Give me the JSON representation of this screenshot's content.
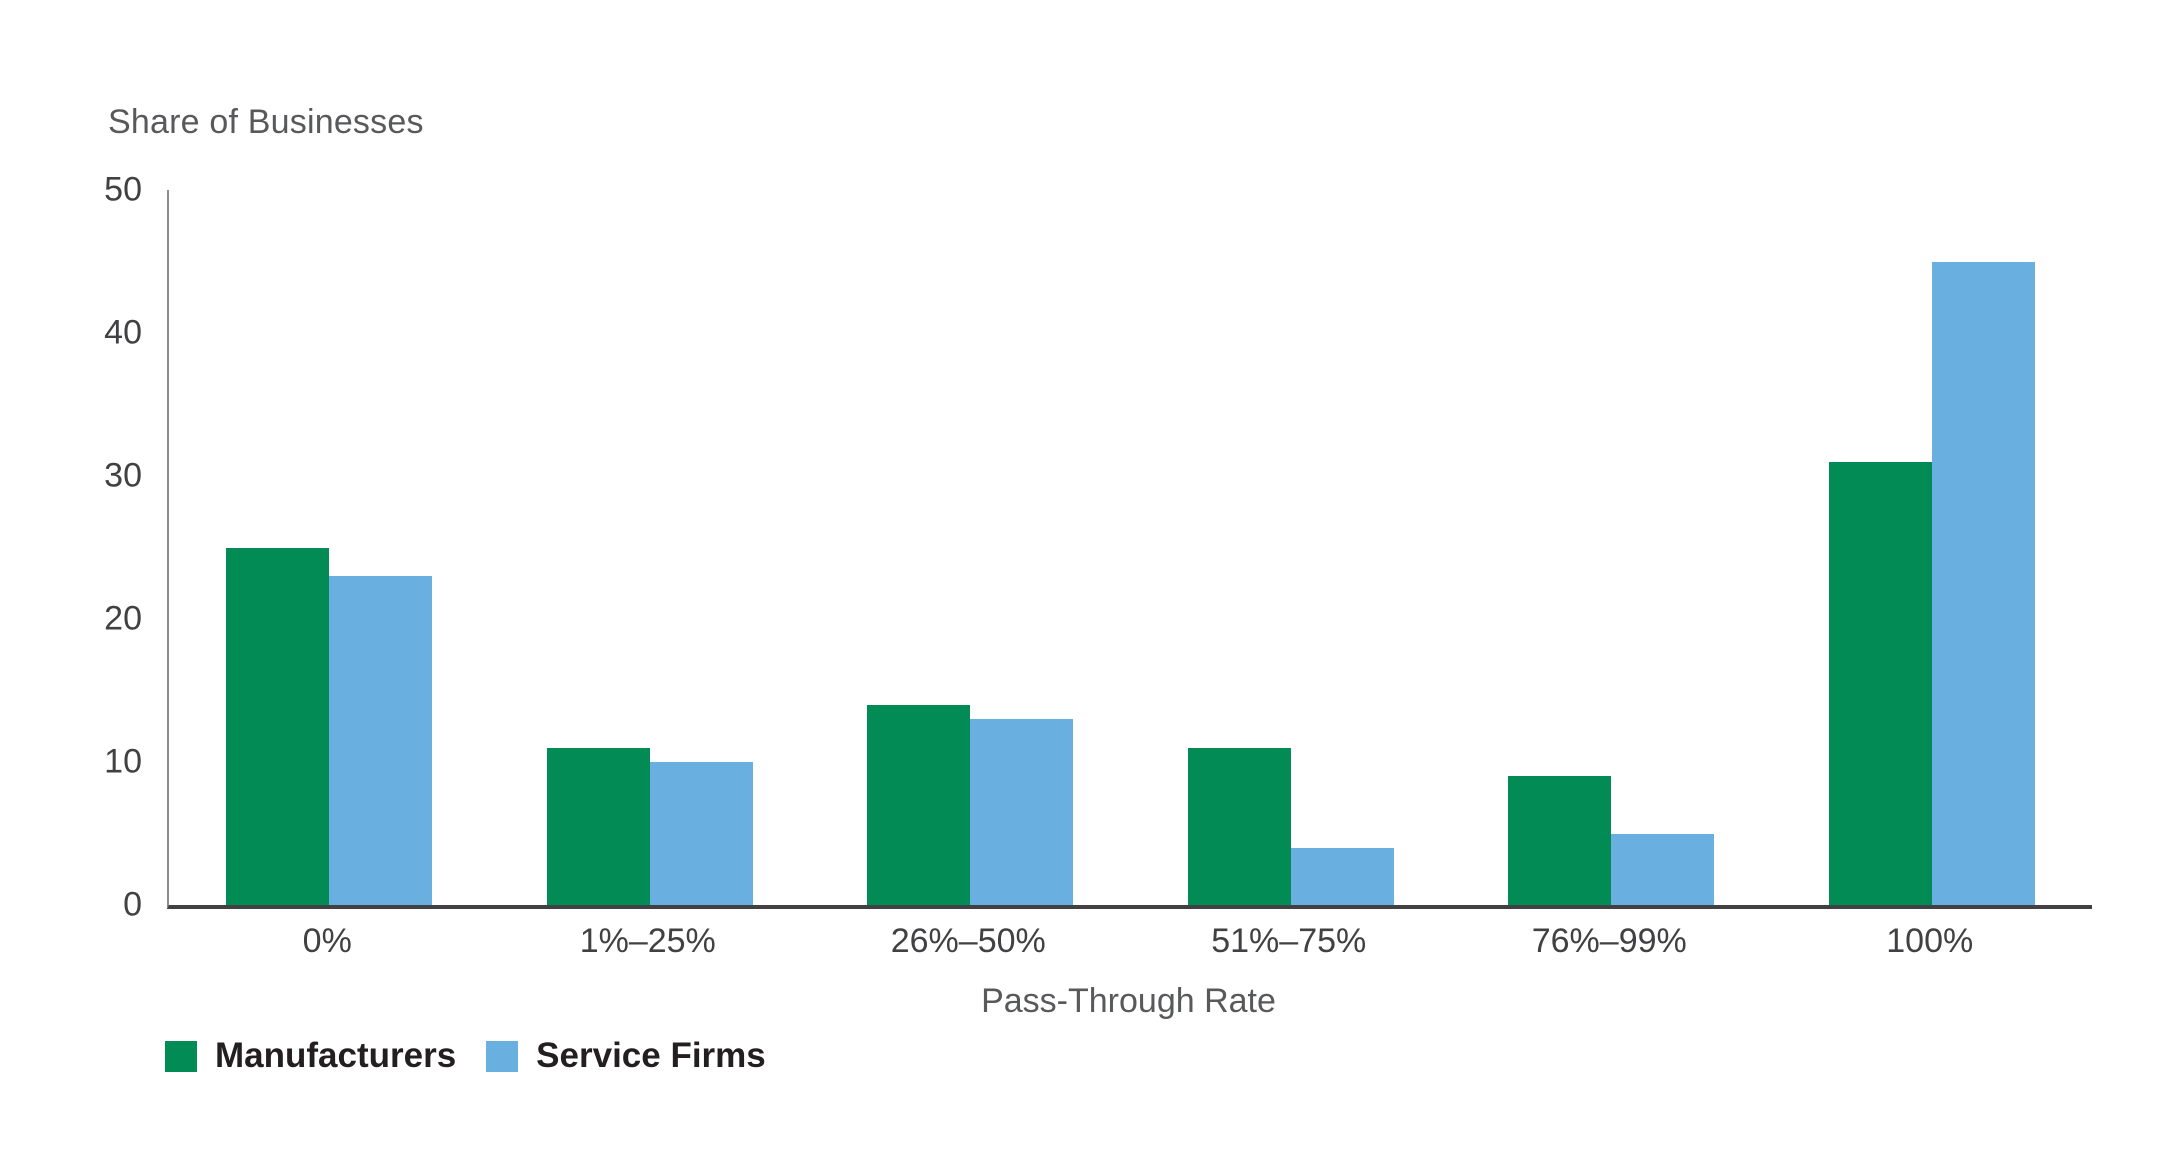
{
  "chart_data": {
    "type": "bar",
    "title": "",
    "y_axis_title": "Share of Businesses",
    "xlabel": "Pass-Through Rate",
    "categories": [
      "0%",
      "1%–25%",
      "26%–50%",
      "51%–75%",
      "76%–99%",
      "100%"
    ],
    "series": [
      {
        "name": "Manufacturers",
        "color": "#038B55",
        "values": [
          25,
          11,
          14,
          11,
          9,
          31
        ]
      },
      {
        "name": "Service Firms",
        "color": "#69AFE0",
        "values": [
          23,
          10,
          13,
          4,
          5,
          45
        ]
      }
    ],
    "ylim": [
      0,
      50
    ],
    "y_ticks": [
      0,
      10,
      20,
      30,
      40,
      50
    ],
    "grid": "off",
    "legend_position": "bottom-left"
  },
  "colors": {
    "background": "#FFFFFF",
    "x_axis_line": "#414042",
    "y_axis_line": "#8A8C8E",
    "tick_text": "#414042",
    "title_text": "#58595B",
    "legend_text": "#231F20"
  }
}
